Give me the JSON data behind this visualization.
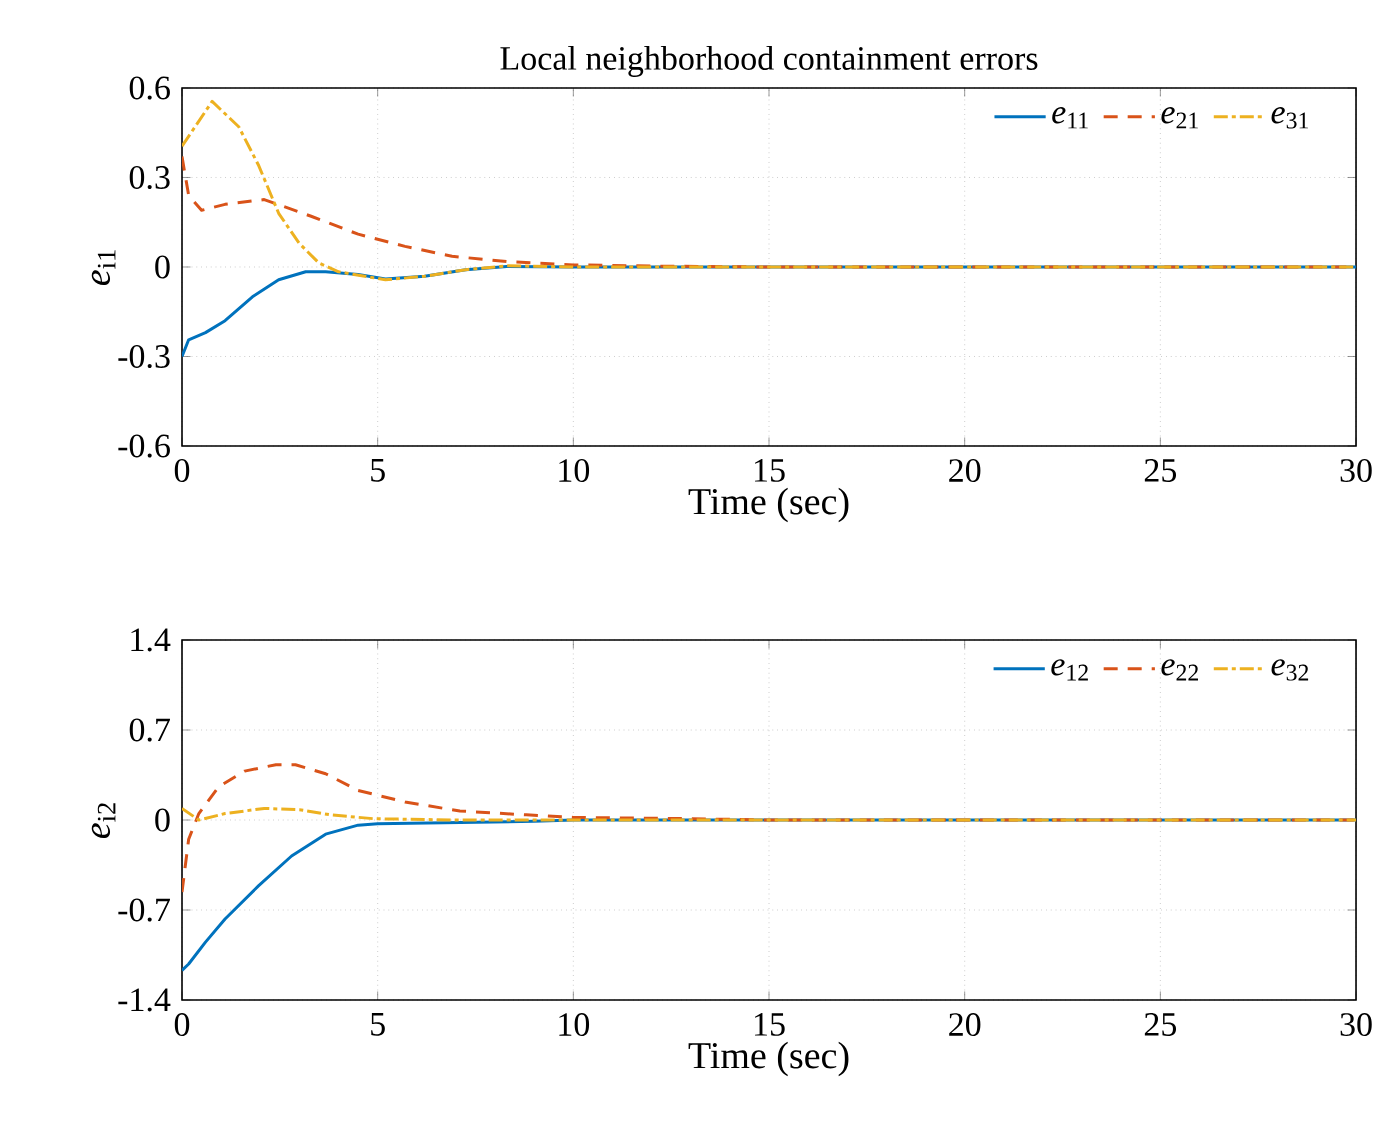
{
  "chart_data": [
    {
      "type": "line",
      "title": "Local neighborhood containment errors",
      "xlabel": "Time (sec)",
      "ylabel": "*e*$_{i1}$",
      "xlim": [
        0,
        30
      ],
      "xticks": [
        0,
        5,
        10,
        15,
        20,
        25,
        30
      ],
      "ylim": [
        -0.6,
        0.6
      ],
      "yticks": [
        -0.6,
        -0.3,
        0,
        0.3,
        0.6
      ],
      "grid": true,
      "legend": "top right",
      "series": [
        {
          "name": "*e*$_{11}$",
          "color": "#0072bd",
          "line_style": "solid",
          "x": [
            0,
            0.17,
            0.6,
            1.1,
            1.8,
            2.47,
            3.16,
            3.67,
            4.5,
            5.2,
            6.2,
            7.25,
            8.3,
            10,
            15,
            20,
            25,
            30
          ],
          "values": [
            -0.3,
            -0.244,
            -0.22,
            -0.18,
            -0.1,
            -0.043,
            -0.016,
            -0.016,
            -0.025,
            -0.04,
            -0.031,
            -0.009,
            0.002,
            0,
            0,
            0,
            0,
            0
          ]
        },
        {
          "name": "*e*$_{21}$",
          "color": "#d95319",
          "line_style": "dashed",
          "x": [
            0,
            0.17,
            0.5,
            1.1,
            2.1,
            3.3,
            4.5,
            5.7,
            6.9,
            8.3,
            10,
            12,
            15,
            20,
            25,
            30
          ],
          "values": [
            0.37,
            0.24,
            0.19,
            0.21,
            0.226,
            0.17,
            0.11,
            0.069,
            0.036,
            0.018,
            0.007,
            0.003,
            0,
            0,
            0,
            0
          ]
        },
        {
          "name": "*e*$_{31}$",
          "color": "#edb120",
          "line_style": "dashdot",
          "x": [
            0,
            0.77,
            1.45,
            1.96,
            2.47,
            2.99,
            3.5,
            4.0,
            5.2,
            6.2,
            7.25,
            8.3,
            10,
            15,
            20,
            25,
            30
          ],
          "values": [
            0.405,
            0.555,
            0.47,
            0.34,
            0.18,
            0.08,
            0.013,
            -0.016,
            -0.043,
            -0.031,
            -0.009,
            0.004,
            0,
            0,
            0,
            0,
            0
          ]
        }
      ]
    },
    {
      "type": "line",
      "xlabel": "Time (sec)",
      "ylabel": "*e*$_{i2}$",
      "xlim": [
        0,
        30
      ],
      "xticks": [
        0,
        5,
        10,
        15,
        20,
        25,
        30
      ],
      "ylim": [
        -1.4,
        1.4
      ],
      "yticks": [
        -1.4,
        -0.7,
        0,
        0.7,
        1.4
      ],
      "grid": true,
      "legend": "top right",
      "series": [
        {
          "name": "*e*$_{12}$",
          "color": "#0072bd",
          "line_style": "solid",
          "x": [
            0,
            0.17,
            0.6,
            1.1,
            1.96,
            2.8,
            3.67,
            4.5,
            5,
            7,
            9,
            10,
            15,
            20,
            25,
            30
          ],
          "values": [
            -1.17,
            -1.12,
            -0.95,
            -0.77,
            -0.51,
            -0.28,
            -0.11,
            -0.04,
            -0.03,
            -0.02,
            -0.01,
            0,
            0,
            0,
            0,
            0
          ]
        },
        {
          "name": "*e*$_{22}$",
          "color": "#d95319",
          "line_style": "dashed",
          "x": [
            0,
            0.17,
            0.43,
            0.94,
            1.6,
            2.4,
            2.9,
            3.67,
            4.5,
            5.7,
            7.1,
            8.8,
            10,
            13,
            15,
            20,
            25,
            30
          ],
          "values": [
            -0.56,
            -0.15,
            0.05,
            0.26,
            0.38,
            0.43,
            0.43,
            0.36,
            0.23,
            0.14,
            0.07,
            0.04,
            0.02,
            0.01,
            0,
            0,
            0,
            0
          ]
        },
        {
          "name": "*e*$_{32}$",
          "color": "#edb120",
          "line_style": "dashdot",
          "x": [
            0,
            0.43,
            1.1,
            2.1,
            3,
            3.8,
            4.9,
            7,
            10,
            15,
            20,
            25,
            30
          ],
          "values": [
            0.09,
            0.0,
            0.05,
            0.09,
            0.08,
            0.04,
            0.01,
            0,
            0,
            0,
            0,
            0,
            0
          ]
        }
      ]
    }
  ]
}
